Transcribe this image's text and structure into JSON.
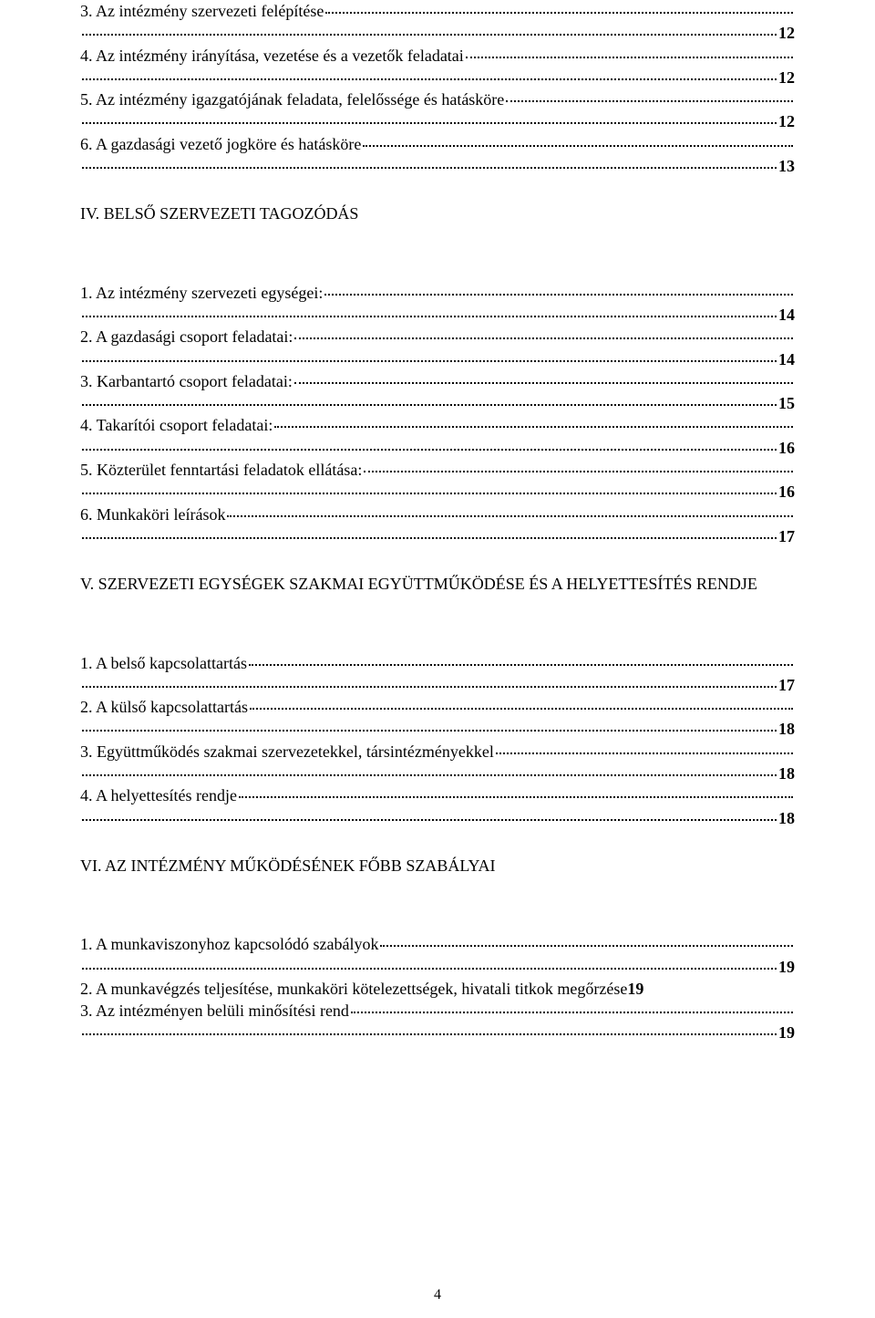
{
  "page_number": "4",
  "sectionIII": {
    "items": [
      {
        "label": "3. Az intézmény szervezeti felépítése",
        "page": "12"
      },
      {
        "label": "4. Az intézmény irányítása, vezetése és a vezetők feladatai",
        "page": "12"
      },
      {
        "label": "5. Az intézmény igazgatójának feladata, felelőssége és hatásköre",
        "page": "12"
      },
      {
        "label": "6. A gazdasági vezető jogköre és hatásköre",
        "page": "13"
      }
    ]
  },
  "sectionIV": {
    "heading": "IV. BELSŐ SZERVEZETI TAGOZÓDÁS",
    "items": [
      {
        "label": "1. Az intézmény szervezeti egységei:",
        "page": "14"
      },
      {
        "label": "2. A gazdasági csoport feladatai:",
        "page": "14"
      },
      {
        "label": "3. Karbantartó csoport feladatai:",
        "page": "15"
      },
      {
        "label": "4. Takarítói csoport feladatai:",
        "page": "16"
      },
      {
        "label": "5. Közterület fenntartási feladatok ellátása:",
        "page": "16"
      },
      {
        "label": "6. Munkaköri leírások",
        "page": "17"
      }
    ]
  },
  "sectionV": {
    "heading": "V. SZERVEZETI EGYSÉGEK SZAKMAI EGYÜTTMŰKÖDÉSE ÉS A HELYETTESÍTÉS RENDJE",
    "items": [
      {
        "label": "1. A belső kapcsolattartás",
        "page": "17"
      },
      {
        "label": "2. A külső kapcsolattartás",
        "page": "18"
      },
      {
        "label": "3. Együttműködés szakmai szervezetekkel, társintézményekkel",
        "page": "18"
      },
      {
        "label": "4. A helyettesítés rendje",
        "page": "18"
      }
    ]
  },
  "sectionVI": {
    "heading": "VI. AZ INTÉZMÉNY MŰKÖDÉSÉNEK FŐBB SZABÁLYAI",
    "items_two_line": [
      {
        "label": "1. A munkaviszonyhoz kapcsolódó szabályok",
        "page": "19"
      }
    ],
    "inline_item": {
      "label": "2. A munkavégzés teljesítése, munkaköri kötelezettségek, hivatali titkok megőrzése",
      "page": "19"
    },
    "items_two_line_after": [
      {
        "label": "3. Az intézményen belüli minősítési rend",
        "page": "19"
      }
    ]
  }
}
